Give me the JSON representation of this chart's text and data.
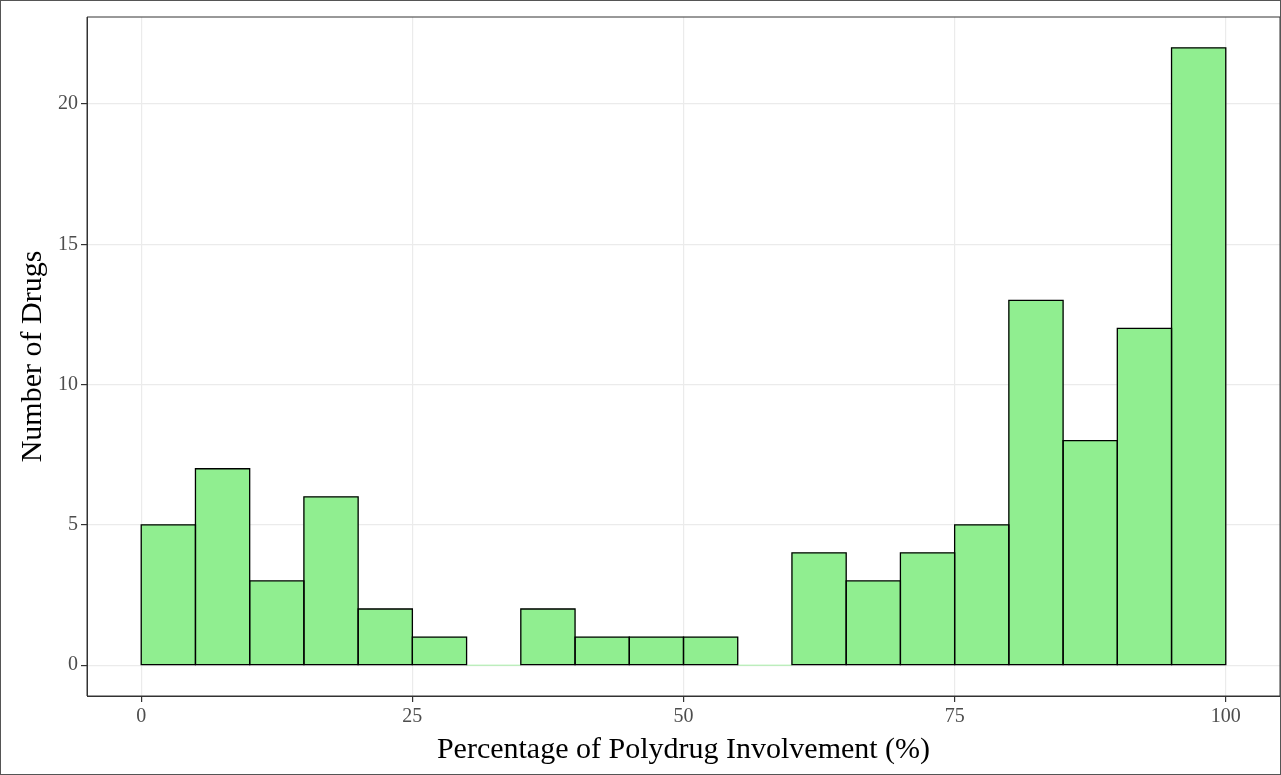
{
  "chart_data": {
    "type": "histogram",
    "xlabel": "Percentage of Polydrug Involvement (%)",
    "ylabel": "Number of Drugs",
    "bins": [
      0,
      5,
      10,
      15,
      20,
      25,
      30,
      35,
      40,
      45,
      50,
      55,
      60,
      65,
      70,
      75,
      80,
      85,
      90,
      95,
      100
    ],
    "values": [
      5,
      7,
      3,
      6,
      2,
      1,
      0,
      2,
      1,
      1,
      1,
      0,
      4,
      3,
      4,
      5,
      13,
      8,
      12,
      22
    ],
    "color": "#90ee90",
    "xlim": [
      -5,
      105
    ],
    "xticks": [
      0,
      25,
      50,
      75,
      100
    ],
    "ylim": [
      -1.1,
      23.1
    ],
    "yticks": [
      0,
      5,
      10,
      15,
      20
    ],
    "grid": true,
    "legend": false
  }
}
